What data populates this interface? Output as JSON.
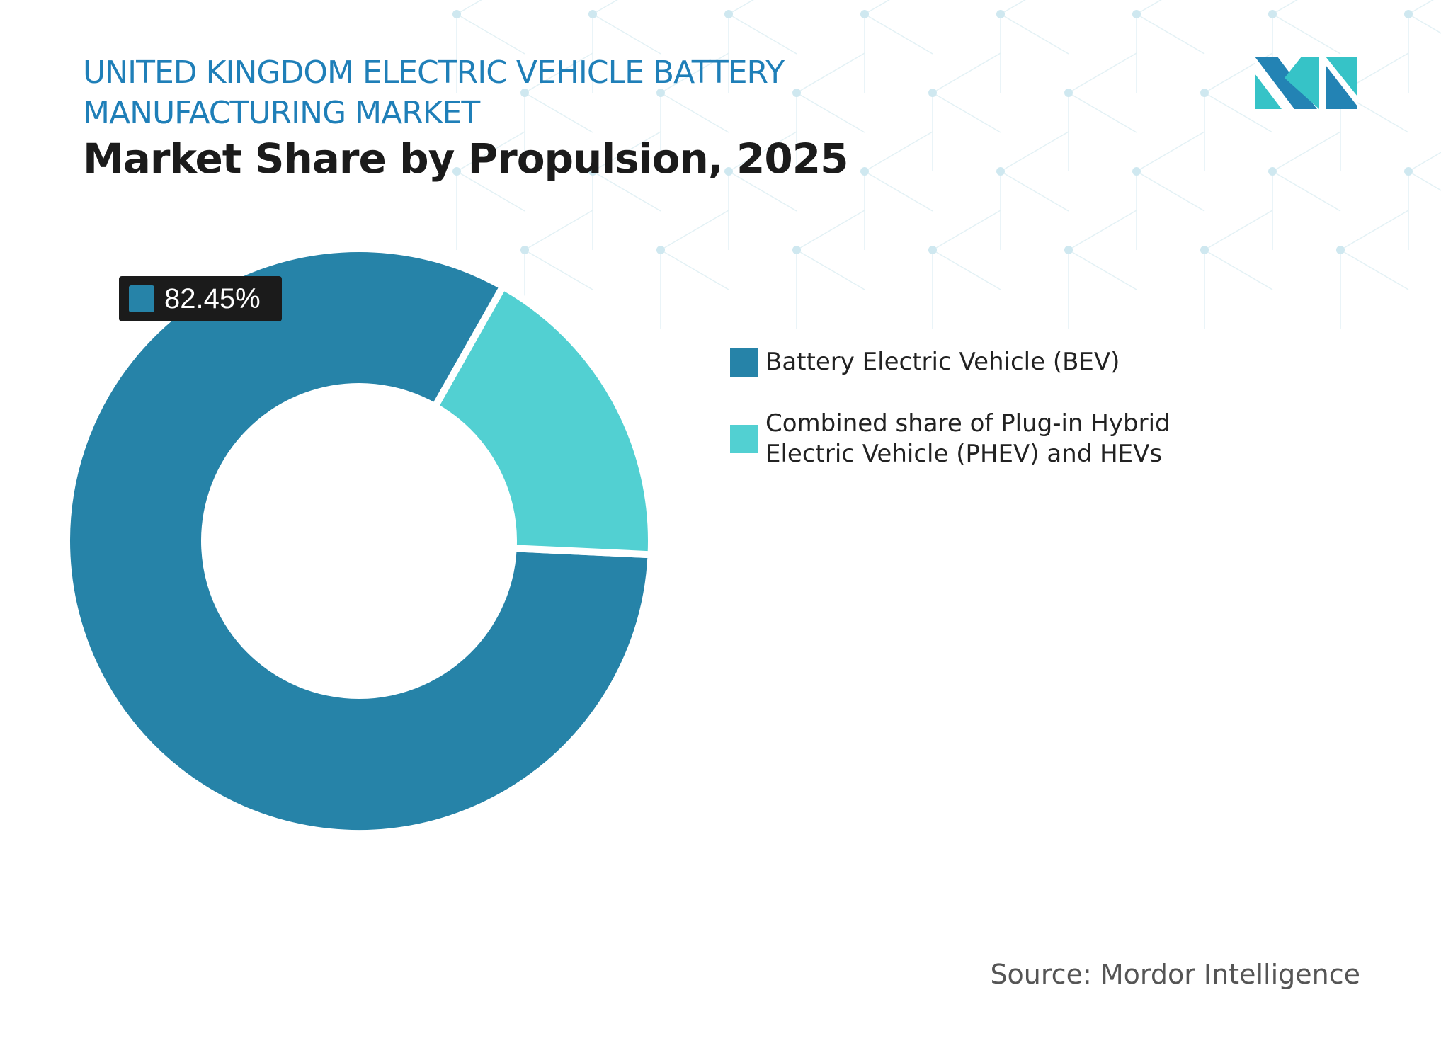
{
  "header": {
    "title": "UNITED KINGDOM ELECTRIC VEHICLE BATTERY MANUFACTURING MARKET",
    "subtitle": "Market Share by Propulsion, 2025"
  },
  "chart_data": {
    "type": "pie",
    "variant": "donut",
    "categories": [
      "Battery Electric Vehicle (BEV)",
      "Combined share of Plug-in Hybrid Electric Vehicle (PHEV) and HEVs"
    ],
    "values": [
      82.45,
      17.55
    ],
    "colors": [
      "#2683a8",
      "#52d0d2"
    ],
    "data_labels": [
      {
        "category": "Battery Electric Vehicle (BEV)",
        "text": "82.45%"
      }
    ],
    "legend_position": "right"
  },
  "source": "Source: Mordor Intelligence",
  "logo": {
    "text": "Mordor Intelligence",
    "colors": [
      "#2383b4",
      "#36c3c7"
    ]
  }
}
